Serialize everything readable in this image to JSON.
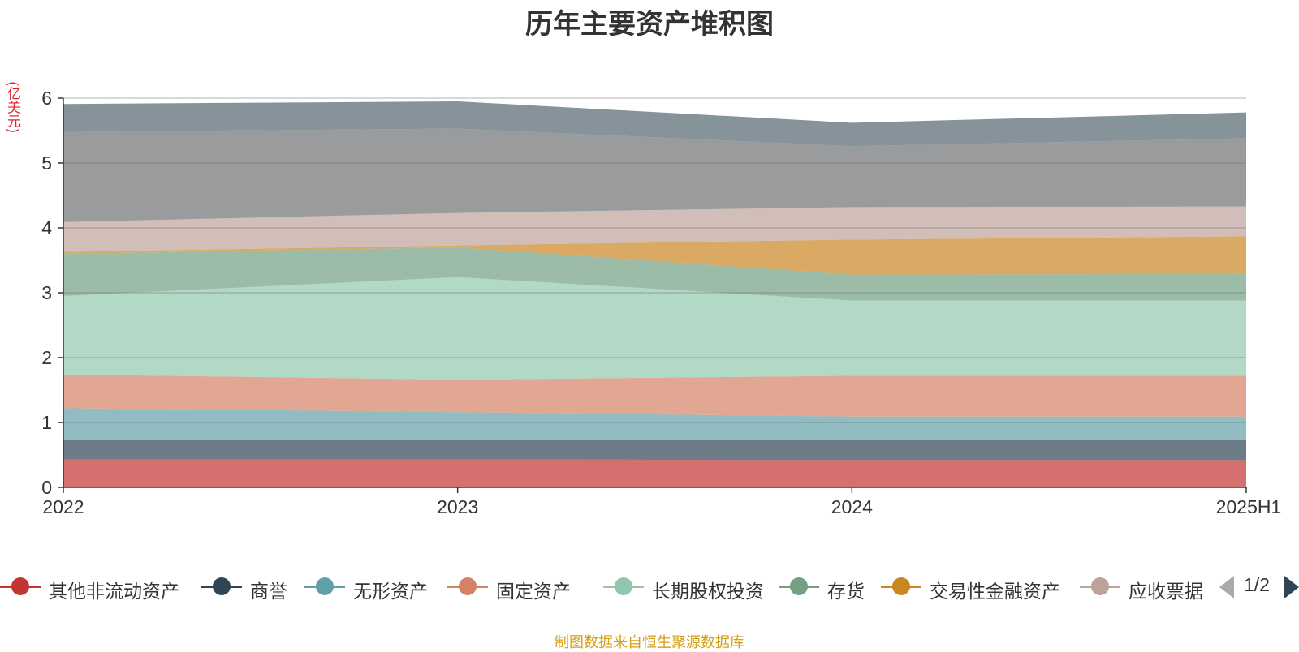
{
  "chart_data": {
    "type": "area",
    "title": "历年主要资产堆积图",
    "ylabel": "(亿美元)",
    "xlabel": "",
    "ylim": [
      0,
      6
    ],
    "y_ticks": [
      0,
      1,
      2,
      3,
      4,
      5,
      6
    ],
    "categories": [
      "2022",
      "2023",
      "2024",
      "2025H1"
    ],
    "stacked": true,
    "grid": true,
    "legend_position": "bottom",
    "legend_page": "1/2",
    "series": [
      {
        "name": "其他非流动资产",
        "color": "#c23531",
        "values": [
          0.43,
          0.43,
          0.42,
          0.42
        ]
      },
      {
        "name": "商誉",
        "color": "#2f4554",
        "values": [
          0.31,
          0.31,
          0.31,
          0.31
        ]
      },
      {
        "name": "无形资产",
        "color": "#61a0a8",
        "values": [
          0.48,
          0.42,
          0.36,
          0.36
        ]
      },
      {
        "name": "固定资产",
        "color": "#d48265",
        "values": [
          0.52,
          0.5,
          0.63,
          0.63
        ]
      },
      {
        "name": "长期股权投资",
        "color": "#91c7ae",
        "values": [
          1.21,
          1.58,
          1.16,
          1.16
        ]
      },
      {
        "name": "存货",
        "color": "#749f83",
        "values": [
          0.65,
          0.46,
          0.4,
          0.41
        ]
      },
      {
        "name": "交易性金融资产",
        "color": "#ca8622",
        "values": [
          0.03,
          0.03,
          0.54,
          0.58
        ]
      },
      {
        "name": "应收票据",
        "color": "#bda29a",
        "values": [
          0.46,
          0.5,
          0.5,
          0.46
        ]
      },
      {
        "name": "",
        "color": "#6e7074",
        "values": [
          1.39,
          1.3,
          0.94,
          1.05
        ]
      },
      {
        "name": "",
        "color": "#546570",
        "values": [
          0.43,
          0.42,
          0.36,
          0.4
        ]
      }
    ]
  },
  "footer": {
    "source": "制图数据来自恒生聚源数据库"
  }
}
